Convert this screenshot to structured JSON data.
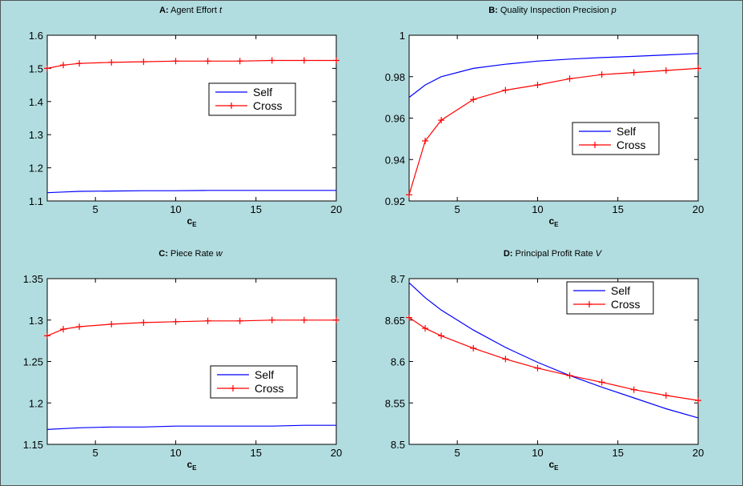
{
  "chart_data": [
    {
      "id": "A",
      "type": "line",
      "title_prefix": "A:",
      "title_text": "Agent Effort",
      "title_var": "t",
      "xlabel": "c",
      "xlabel_sub": "E",
      "xlim": [
        2,
        20
      ],
      "ylim": [
        1.1,
        1.6
      ],
      "xticks": [
        5,
        10,
        15,
        20
      ],
      "yticks": [
        1.1,
        1.2,
        1.3,
        1.4,
        1.5,
        1.6
      ],
      "grid": false,
      "legend": "right-middle",
      "series": [
        {
          "name": "Self",
          "color": "#0000ff",
          "marker": "none",
          "x": [
            2,
            3,
            4,
            6,
            8,
            10,
            12,
            14,
            16,
            18,
            20
          ],
          "y": [
            1.125,
            1.127,
            1.129,
            1.13,
            1.131,
            1.131,
            1.132,
            1.132,
            1.132,
            1.132,
            1.132
          ]
        },
        {
          "name": "Cross",
          "color": "#ff0000",
          "marker": "plus",
          "x": [
            2,
            3,
            4,
            6,
            8,
            10,
            12,
            14,
            16,
            18,
            20
          ],
          "y": [
            1.5,
            1.51,
            1.515,
            1.518,
            1.52,
            1.522,
            1.522,
            1.522,
            1.524,
            1.524,
            1.524
          ]
        }
      ]
    },
    {
      "id": "B",
      "type": "line",
      "title_prefix": "B:",
      "title_text": "Quality Inspection Precision",
      "title_var": "p",
      "xlabel": "c",
      "xlabel_sub": "E",
      "xlim": [
        2,
        20
      ],
      "ylim": [
        0.92,
        1.0
      ],
      "xticks": [
        5,
        10,
        15,
        20
      ],
      "yticks": [
        0.92,
        0.94,
        0.96,
        0.98,
        1
      ],
      "grid": false,
      "legend": "right-lower",
      "series": [
        {
          "name": "Self",
          "color": "#0000ff",
          "marker": "none",
          "x": [
            2,
            3,
            4,
            6,
            8,
            10,
            12,
            14,
            16,
            18,
            20
          ],
          "y": [
            0.97,
            0.976,
            0.98,
            0.984,
            0.986,
            0.9875,
            0.9885,
            0.9892,
            0.9898,
            0.9905,
            0.9912
          ]
        },
        {
          "name": "Cross",
          "color": "#ff0000",
          "marker": "plus",
          "x": [
            2,
            3,
            4,
            6,
            8,
            10,
            12,
            14,
            16,
            18,
            20
          ],
          "y": [
            0.923,
            0.949,
            0.959,
            0.969,
            0.9735,
            0.976,
            0.979,
            0.981,
            0.982,
            0.983,
            0.984
          ]
        }
      ]
    },
    {
      "id": "C",
      "type": "line",
      "title_prefix": "C:",
      "title_text": "Piece Rate",
      "title_var": "w",
      "xlabel": "c",
      "xlabel_sub": "E",
      "xlim": [
        2,
        20
      ],
      "ylim": [
        1.15,
        1.35
      ],
      "xticks": [
        5,
        10,
        15,
        20
      ],
      "yticks": [
        1.15,
        1.2,
        1.25,
        1.3,
        1.35
      ],
      "grid": false,
      "legend": "right-lower",
      "series": [
        {
          "name": "Self",
          "color": "#0000ff",
          "marker": "none",
          "x": [
            2,
            3,
            4,
            6,
            8,
            10,
            12,
            14,
            16,
            18,
            20
          ],
          "y": [
            1.168,
            1.169,
            1.17,
            1.171,
            1.171,
            1.172,
            1.172,
            1.172,
            1.172,
            1.173,
            1.173
          ]
        },
        {
          "name": "Cross",
          "color": "#ff0000",
          "marker": "plus",
          "x": [
            2,
            3,
            4,
            6,
            8,
            10,
            12,
            14,
            16,
            18,
            20
          ],
          "y": [
            1.281,
            1.289,
            1.292,
            1.295,
            1.297,
            1.298,
            1.299,
            1.299,
            1.3,
            1.3,
            1.3
          ]
        }
      ]
    },
    {
      "id": "D",
      "type": "line",
      "title_prefix": "D:",
      "title_text": "Principal Profit Rate",
      "title_var": "V",
      "xlabel": "c",
      "xlabel_sub": "E",
      "xlim": [
        2,
        20
      ],
      "ylim": [
        8.5,
        8.7
      ],
      "xticks": [
        5,
        10,
        15,
        20
      ],
      "yticks": [
        8.5,
        8.55,
        8.6,
        8.65,
        8.7
      ],
      "grid": false,
      "legend": "top-middle",
      "series": [
        {
          "name": "Self",
          "color": "#0000ff",
          "marker": "none",
          "x": [
            2,
            3,
            4,
            6,
            8,
            10,
            12,
            14,
            16,
            18,
            20
          ],
          "y": [
            8.695,
            8.677,
            8.662,
            8.638,
            8.617,
            8.599,
            8.583,
            8.569,
            8.556,
            8.543,
            8.532
          ]
        },
        {
          "name": "Cross",
          "color": "#ff0000",
          "marker": "plus",
          "x": [
            2,
            3,
            4,
            6,
            8,
            10,
            12,
            14,
            16,
            18,
            20
          ],
          "y": [
            8.653,
            8.64,
            8.631,
            8.616,
            8.603,
            8.592,
            8.583,
            8.575,
            8.566,
            8.559,
            8.553
          ]
        }
      ]
    }
  ]
}
